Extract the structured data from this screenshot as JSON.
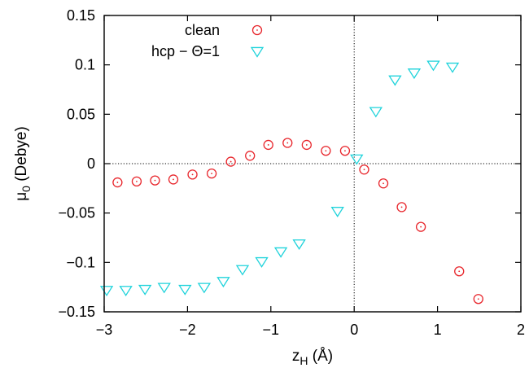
{
  "chart_data": {
    "type": "scatter",
    "xlabel": "z",
    "xlabel_sub": "H",
    "xlabel_suffix": " (Å)",
    "ylabel": "μ",
    "ylabel_sub": "0",
    "ylabel_suffix": " (Debye)",
    "xlim": [
      -3,
      2
    ],
    "ylim": [
      -0.15,
      0.15
    ],
    "xticks": [
      -3,
      -2,
      -1,
      0,
      1,
      2
    ],
    "xtick_labels": [
      "−3",
      "−2",
      "−1",
      "0",
      "1",
      "2"
    ],
    "yticks": [
      -0.15,
      -0.1,
      -0.05,
      0,
      0.05,
      0.1,
      0.15
    ],
    "ytick_labels": [
      "−0.15",
      "−0.1",
      "−0.05",
      "0",
      "0.05",
      "0.1",
      "0.15"
    ],
    "zero_lines": true,
    "legend_position": "top-left",
    "series": [
      {
        "name": "clean",
        "marker": "circle-dot",
        "color": "#e8262c",
        "points": [
          [
            -2.84,
            -0.019
          ],
          [
            -2.61,
            -0.018
          ],
          [
            -2.39,
            -0.017
          ],
          [
            -2.17,
            -0.016
          ],
          [
            -1.94,
            -0.011
          ],
          [
            -1.71,
            -0.01
          ],
          [
            -1.48,
            0.002
          ],
          [
            -1.25,
            0.008
          ],
          [
            -1.03,
            0.019
          ],
          [
            -0.8,
            0.021
          ],
          [
            -0.57,
            0.019
          ],
          [
            -0.34,
            0.013
          ],
          [
            -0.11,
            0.013
          ],
          [
            0.12,
            -0.006
          ],
          [
            0.35,
            -0.02
          ],
          [
            0.57,
            -0.044
          ],
          [
            0.8,
            -0.064
          ],
          [
            1.26,
            -0.109
          ],
          [
            1.49,
            -0.137
          ]
        ]
      },
      {
        "name": "hcp − Θ=1",
        "marker": "triangle-down",
        "color": "#1fd3db",
        "points": [
          [
            -2.97,
            -0.128
          ],
          [
            -2.74,
            -0.128
          ],
          [
            -2.51,
            -0.127
          ],
          [
            -2.28,
            -0.125
          ],
          [
            -2.03,
            -0.127
          ],
          [
            -1.8,
            -0.125
          ],
          [
            -1.57,
            -0.119
          ],
          [
            -1.34,
            -0.107
          ],
          [
            -1.11,
            -0.099
          ],
          [
            -0.88,
            -0.089
          ],
          [
            -0.66,
            -0.081
          ],
          [
            -0.2,
            -0.048
          ],
          [
            0.03,
            0.005
          ],
          [
            0.26,
            0.053
          ],
          [
            0.49,
            0.085
          ],
          [
            0.72,
            0.092
          ],
          [
            0.95,
            0.1
          ],
          [
            1.18,
            0.098
          ]
        ]
      }
    ]
  }
}
